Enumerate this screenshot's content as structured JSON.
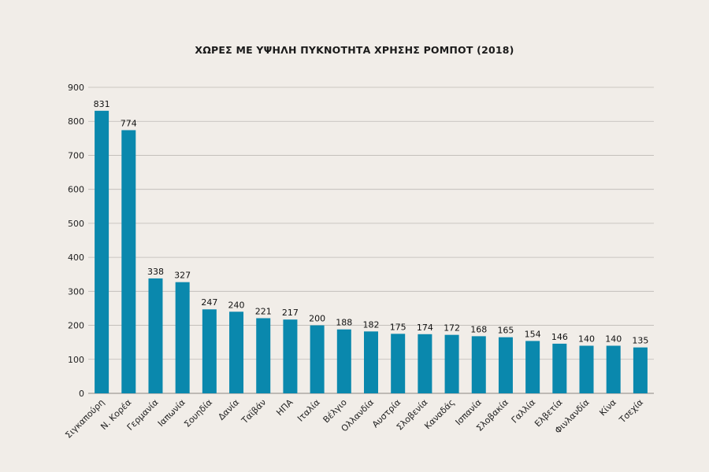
{
  "chart_data": {
    "type": "bar",
    "title": "ΧΩΡΕΣ ΜΕ ΥΨΗΛΗ ΠΥΚΝΟΤΗΤΑ ΧΡΗΣΗΣ ΡΟΜΠΟΤ (2018)",
    "xlabel": "",
    "ylabel": "",
    "categories": [
      "Σιγκαπούρη",
      "Ν. Κορέα",
      "Γερμανία",
      "Ιαπωνία",
      "Σουηδία",
      "Δανία",
      "Ταϊβάν",
      "ΗΠΑ",
      "Ιταλία",
      "Βέλγιο",
      "Ολλανδία",
      "Αυστρία",
      "Σλοβενία",
      "Καναδάς",
      "Ισπανία",
      "Σλοβακία",
      "Γαλλία",
      "Ελβετία",
      "Φινλανδία",
      "Κίνα",
      "Τσεχία"
    ],
    "values": [
      831,
      774,
      338,
      327,
      247,
      240,
      221,
      217,
      200,
      188,
      182,
      175,
      174,
      172,
      168,
      165,
      154,
      146,
      140,
      140,
      135
    ],
    "ylim": [
      0,
      900
    ],
    "yticks": [
      0,
      100,
      200,
      300,
      400,
      500,
      600,
      700,
      800,
      900
    ],
    "grid": true,
    "bar_color": "#0a88ad",
    "grid_color": "#bdbab5",
    "background": "#f1ede8"
  }
}
